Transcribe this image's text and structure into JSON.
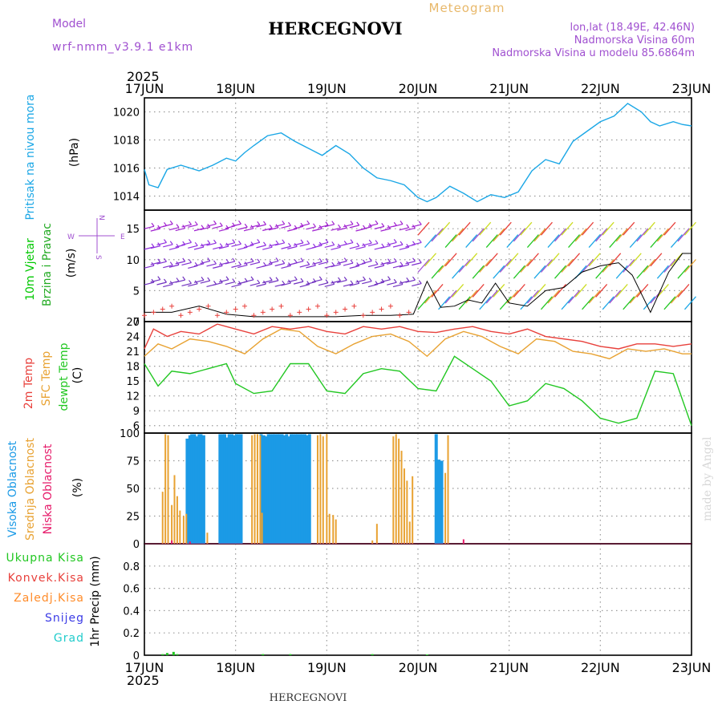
{
  "header": {
    "model_label": "Model",
    "model_name": "wrf-nmm_v3.9.1 e1km",
    "title": "HERCEGNOVI",
    "meteogram_label": "Meteogram",
    "lonlat": "lon,lat (18.49E, 42.46N)",
    "altitude": "Nadmorska Visina 60m",
    "model_altitude": "Nadmorska Visina u modelu 85.6864m",
    "footer_title": "HERCEGNOVI",
    "credit": "made by Angel"
  },
  "colors": {
    "pressure": "#1ba7e6",
    "wind_label": "#00c800",
    "wind_label2": "#22aa22",
    "temp2m": "#e8413c",
    "sfctemp": "#e8a232",
    "dewpt": "#22c722",
    "high_cloud": "#1b9ae6",
    "mid_cloud": "#e8a232",
    "low_cloud": "#e61b6a",
    "total_precip": "#22c722",
    "conv_precip": "#e8413c",
    "freezing": "#ff8c2a",
    "snow": "#3b3be6",
    "hail": "#22cccc",
    "purple": "#a050d0"
  },
  "axis": {
    "year": "2025",
    "days": [
      "17JUN",
      "18JUN",
      "19JUN",
      "20JUN",
      "21JUN",
      "22JUN",
      "23JUN"
    ]
  },
  "panels": {
    "pressure": {
      "label": "Pritisak na nivou mora",
      "unit": "(hPa)"
    },
    "wind": {
      "label1": "10m Vjetar",
      "label2": "Brzina i Pravac",
      "unit": "(m/s)",
      "compass_n": "N",
      "compass_s": "S",
      "compass_w": "W",
      "compass_e": "E"
    },
    "temp": {
      "label1": "2m Temp",
      "label2": "SFC Temp",
      "label3": "dewpt Temp",
      "unit": "(C)"
    },
    "cloud": {
      "label1": "Visoka Oblacnost",
      "label2": "Srednja Oblacnost",
      "label3": "Niska Oblacnost",
      "unit": "(%)"
    },
    "precip": {
      "label1": "Ukupna Kisa",
      "label2": "Konvek.Kisa",
      "label3": "Zaledj.Kisa",
      "label4": "Snijeg",
      "label5": "Grad",
      "unit": "1hr Precip (mm)"
    }
  },
  "chart_data": [
    {
      "type": "line",
      "name": "pressure",
      "ylabel": "(hPa)",
      "ylim": [
        1013,
        1021
      ],
      "yticks": [
        "1014",
        "1016",
        "1018",
        "1020"
      ],
      "ytick_values": [
        1014,
        1016,
        1018,
        1020
      ],
      "xlim": [
        0,
        6
      ],
      "grid": true,
      "series": [
        {
          "name": "Pritisak na nivou mora",
          "x": [
            0,
            0.05,
            0.15,
            0.25,
            0.4,
            0.6,
            0.75,
            0.9,
            1.0,
            1.1,
            1.2,
            1.35,
            1.5,
            1.65,
            1.8,
            1.95,
            2.1,
            2.25,
            2.4,
            2.55,
            2.7,
            2.85,
            3.0,
            3.1,
            3.2,
            3.35,
            3.5,
            3.65,
            3.8,
            3.95,
            4.1,
            4.25,
            4.4,
            4.55,
            4.7,
            4.85,
            5.0,
            5.15,
            5.3,
            5.45,
            5.55,
            5.65,
            5.8,
            5.9,
            6.0
          ],
          "y": [
            1015.9,
            1014.8,
            1014.6,
            1015.9,
            1016.2,
            1015.8,
            1016.2,
            1016.7,
            1016.5,
            1017.1,
            1017.6,
            1018.3,
            1018.5,
            1017.9,
            1017.4,
            1016.9,
            1017.6,
            1017.0,
            1016.0,
            1015.3,
            1015.1,
            1014.8,
            1013.9,
            1013.6,
            1013.9,
            1014.7,
            1014.2,
            1013.6,
            1014.1,
            1013.9,
            1014.3,
            1015.8,
            1016.6,
            1016.3,
            1017.9,
            1018.6,
            1019.3,
            1019.7,
            1020.6,
            1020.0,
            1019.3,
            1019.0,
            1019.3,
            1019.1,
            1019.0
          ]
        }
      ]
    },
    {
      "type": "scatter",
      "name": "wind",
      "ylabel": "(m/s)",
      "ylim": [
        0,
        18
      ],
      "yticks": [
        "0",
        "5",
        "10",
        "15"
      ],
      "ytick_values": [
        0,
        5,
        10,
        15
      ],
      "xlim": [
        0,
        6
      ],
      "grid": true,
      "series": [
        {
          "name": "Brzina",
          "x": [
            0,
            0.3,
            0.6,
            0.9,
            1.2,
            1.5,
            1.8,
            2.1,
            2.4,
            2.7,
            2.95,
            3.1,
            3.25,
            3.4,
            3.55,
            3.7,
            3.85,
            4.0,
            4.2,
            4.4,
            4.6,
            4.8,
            5.0,
            5.2,
            5.35,
            5.55,
            5.75,
            5.9,
            6.0
          ],
          "y": [
            1.5,
            1.5,
            2.5,
            1.2,
            0.8,
            0.8,
            0.8,
            0.8,
            1.0,
            1.0,
            1.2,
            6.5,
            2.3,
            2.5,
            3.5,
            3.0,
            6.2,
            3.0,
            2.5,
            5.0,
            5.5,
            8.0,
            9.0,
            9.5,
            7.5,
            1.5,
            8.0,
            11.0,
            11.0
          ]
        }
      ]
    },
    {
      "type": "line",
      "name": "temperature",
      "ylabel": "(C)",
      "ylim": [
        4.5,
        27
      ],
      "yticks": [
        "6",
        "9",
        "12",
        "15",
        "18",
        "21",
        "24",
        "27"
      ],
      "ytick_values": [
        6,
        9,
        12,
        15,
        18,
        21,
        24,
        27
      ],
      "xlim": [
        0,
        6
      ],
      "grid": true,
      "series": [
        {
          "name": "2m Temp",
          "x": [
            0,
            0.1,
            0.25,
            0.4,
            0.6,
            0.8,
            1.0,
            1.2,
            1.4,
            1.6,
            1.8,
            2.0,
            2.2,
            2.4,
            2.6,
            2.8,
            3.0,
            3.2,
            3.4,
            3.6,
            3.8,
            4.0,
            4.2,
            4.4,
            4.6,
            4.8,
            5.0,
            5.2,
            5.4,
            5.6,
            5.8,
            6.0
          ],
          "y": [
            21.5,
            25.5,
            24.0,
            25.0,
            24.5,
            26.5,
            25.5,
            24.5,
            26.0,
            25.5,
            26.0,
            25.0,
            24.5,
            26.0,
            25.5,
            26.0,
            25.0,
            24.8,
            25.5,
            26.0,
            25.0,
            24.5,
            25.5,
            24.0,
            23.5,
            23.0,
            22.0,
            21.5,
            22.5,
            22.5,
            22.0,
            22.5
          ]
        },
        {
          "name": "SFC Temp",
          "x": [
            0,
            0.15,
            0.3,
            0.5,
            0.7,
            0.9,
            1.1,
            1.3,
            1.5,
            1.7,
            1.9,
            2.1,
            2.3,
            2.5,
            2.7,
            2.9,
            3.1,
            3.3,
            3.5,
            3.7,
            3.9,
            4.1,
            4.3,
            4.5,
            4.7,
            4.9,
            5.1,
            5.3,
            5.5,
            5.7,
            5.9,
            6.0
          ],
          "y": [
            20.0,
            22.5,
            21.5,
            23.5,
            23.0,
            22.0,
            20.5,
            23.5,
            25.5,
            25.0,
            22.0,
            20.5,
            22.5,
            24.0,
            24.5,
            23.0,
            20.0,
            23.5,
            25.0,
            24.0,
            22.0,
            20.5,
            23.5,
            23.0,
            21.0,
            20.5,
            19.5,
            21.5,
            21.0,
            21.5,
            20.5,
            20.5
          ]
        },
        {
          "name": "dewpt Temp",
          "x": [
            0,
            0.15,
            0.3,
            0.5,
            0.7,
            0.9,
            1.0,
            1.2,
            1.4,
            1.6,
            1.8,
            2.0,
            2.2,
            2.4,
            2.6,
            2.8,
            3.0,
            3.2,
            3.4,
            3.6,
            3.8,
            4.0,
            4.2,
            4.4,
            4.6,
            4.8,
            5.0,
            5.2,
            5.4,
            5.6,
            5.8,
            6.0
          ],
          "y": [
            18.5,
            14.0,
            17.0,
            16.5,
            17.5,
            18.5,
            14.5,
            12.5,
            13.0,
            18.5,
            18.5,
            13.0,
            12.5,
            16.5,
            17.5,
            17.0,
            13.5,
            13.0,
            20.0,
            17.5,
            15.0,
            10.0,
            11.0,
            14.5,
            13.5,
            11.0,
            7.5,
            6.5,
            7.5,
            17.0,
            16.5,
            6.0
          ]
        }
      ]
    },
    {
      "type": "bar",
      "name": "cloud",
      "ylabel": "(%)",
      "ylim": [
        0,
        100
      ],
      "yticks": [
        "0",
        "25",
        "50",
        "75",
        "100"
      ],
      "ytick_values": [
        0,
        25,
        50,
        75,
        100
      ],
      "xlim": [
        0,
        6
      ],
      "grid": true,
      "series": [
        {
          "name": "Visoka Oblacnost",
          "x": [
            0.47,
            0.5,
            0.52,
            0.55,
            0.57,
            0.6,
            0.62,
            0.65,
            0.83,
            0.86,
            0.88,
            0.91,
            0.93,
            0.96,
            0.98,
            1.01,
            1.03,
            1.06,
            1.28,
            1.31,
            1.33,
            1.36,
            1.38,
            1.41,
            1.43,
            1.46,
            1.48,
            1.51,
            1.53,
            1.56,
            1.58,
            1.61,
            1.63,
            1.66,
            1.68,
            1.71,
            1.73,
            1.76,
            1.78,
            1.81,
            3.2,
            3.23,
            3.26
          ],
          "y": [
            95,
            98,
            99,
            99,
            97,
            99,
            99,
            98,
            99,
            99,
            99,
            96,
            99,
            99,
            98,
            99,
            99,
            99,
            99,
            98,
            97,
            99,
            99,
            99,
            99,
            99,
            99,
            99,
            98,
            99,
            97,
            99,
            99,
            99,
            99,
            99,
            99,
            99,
            98,
            99,
            99,
            76,
            75
          ]
        },
        {
          "name": "Srednja Oblacnost",
          "x": [
            0.2,
            0.23,
            0.26,
            0.3,
            0.33,
            0.36,
            0.39,
            0.43,
            0.46,
            0.69,
            1.18,
            1.21,
            1.24,
            1.27,
            1.29,
            1.9,
            1.93,
            1.96,
            2.0,
            2.03,
            2.07,
            2.1,
            2.5,
            2.55,
            2.73,
            2.76,
            2.79,
            2.82,
            2.85,
            2.88,
            2.91,
            2.94,
            3.3,
            3.33
          ],
          "y": [
            47,
            99,
            98,
            35,
            62,
            43,
            30,
            25,
            27,
            10,
            98,
            99,
            99,
            98,
            28,
            98,
            99,
            97,
            99,
            27,
            26,
            22,
            3,
            18,
            97,
            99,
            95,
            84,
            68,
            57,
            20,
            61,
            64,
            98
          ]
        },
        {
          "name": "Niska Oblacnost",
          "x": [
            0.3,
            0.5,
            3.5
          ],
          "y": [
            3,
            2,
            4
          ]
        }
      ]
    },
    {
      "type": "bar",
      "name": "precipitation",
      "ylabel": "1hr Precip (mm)",
      "ylim": [
        0,
        1
      ],
      "yticks": [
        "0",
        "0.2",
        "0.4",
        "0.6",
        "0.8"
      ],
      "ytick_values": [
        0,
        0.2,
        0.4,
        0.6,
        0.8
      ],
      "xlim": [
        0,
        6
      ],
      "grid": true,
      "series": [
        {
          "name": "Ukupna Kisa",
          "x": [
            0.2,
            0.25,
            0.32,
            0.36,
            1.3,
            1.6,
            2.5,
            3.1
          ],
          "y": [
            0.01,
            0.02,
            0.03,
            0.01,
            0.01,
            0.01,
            0.01,
            0.005
          ]
        }
      ]
    }
  ]
}
